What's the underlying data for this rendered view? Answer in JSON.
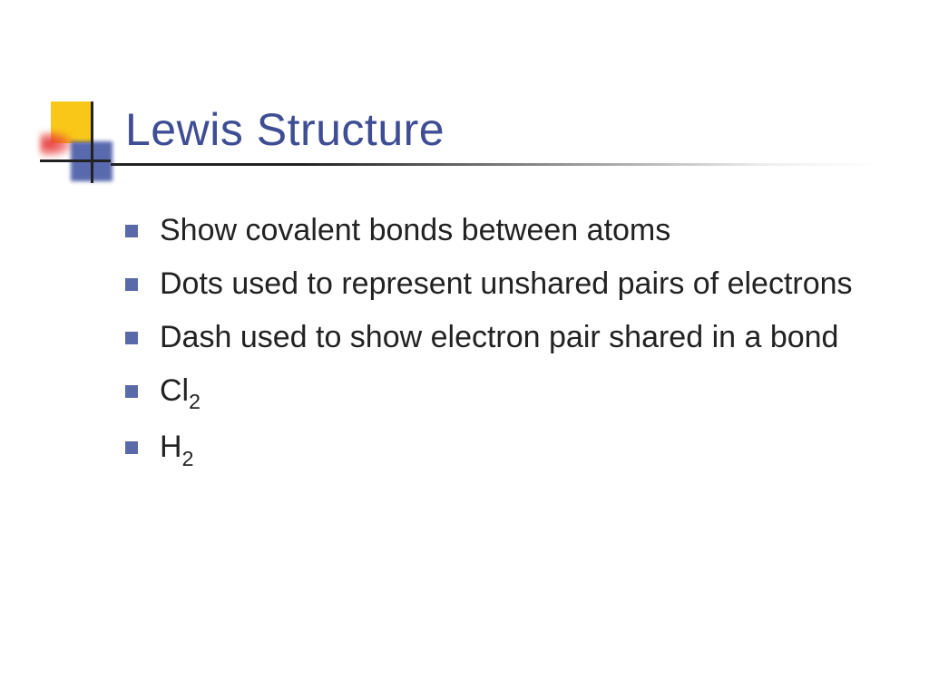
{
  "slide": {
    "title": "Lewis Structure",
    "title_color": "#3e4d94",
    "bullet_color": "#5a6aa8",
    "text_color": "#222222",
    "title_fontsize": 50,
    "body_fontsize": 34,
    "decoration": {
      "yellow": "#f9c718",
      "blue": "#3b4fa0",
      "red": "#e83838",
      "cross": "#222222"
    },
    "bullets": [
      {
        "text": "Show covalent bonds between atoms",
        "sub": ""
      },
      {
        "text": "Dots used to represent unshared pairs of electrons",
        "sub": ""
      },
      {
        "text": "Dash used to show electron pair shared in a bond",
        "sub": ""
      },
      {
        "text": "Cl",
        "sub": "2"
      },
      {
        "text": "H",
        "sub": "2"
      }
    ]
  }
}
